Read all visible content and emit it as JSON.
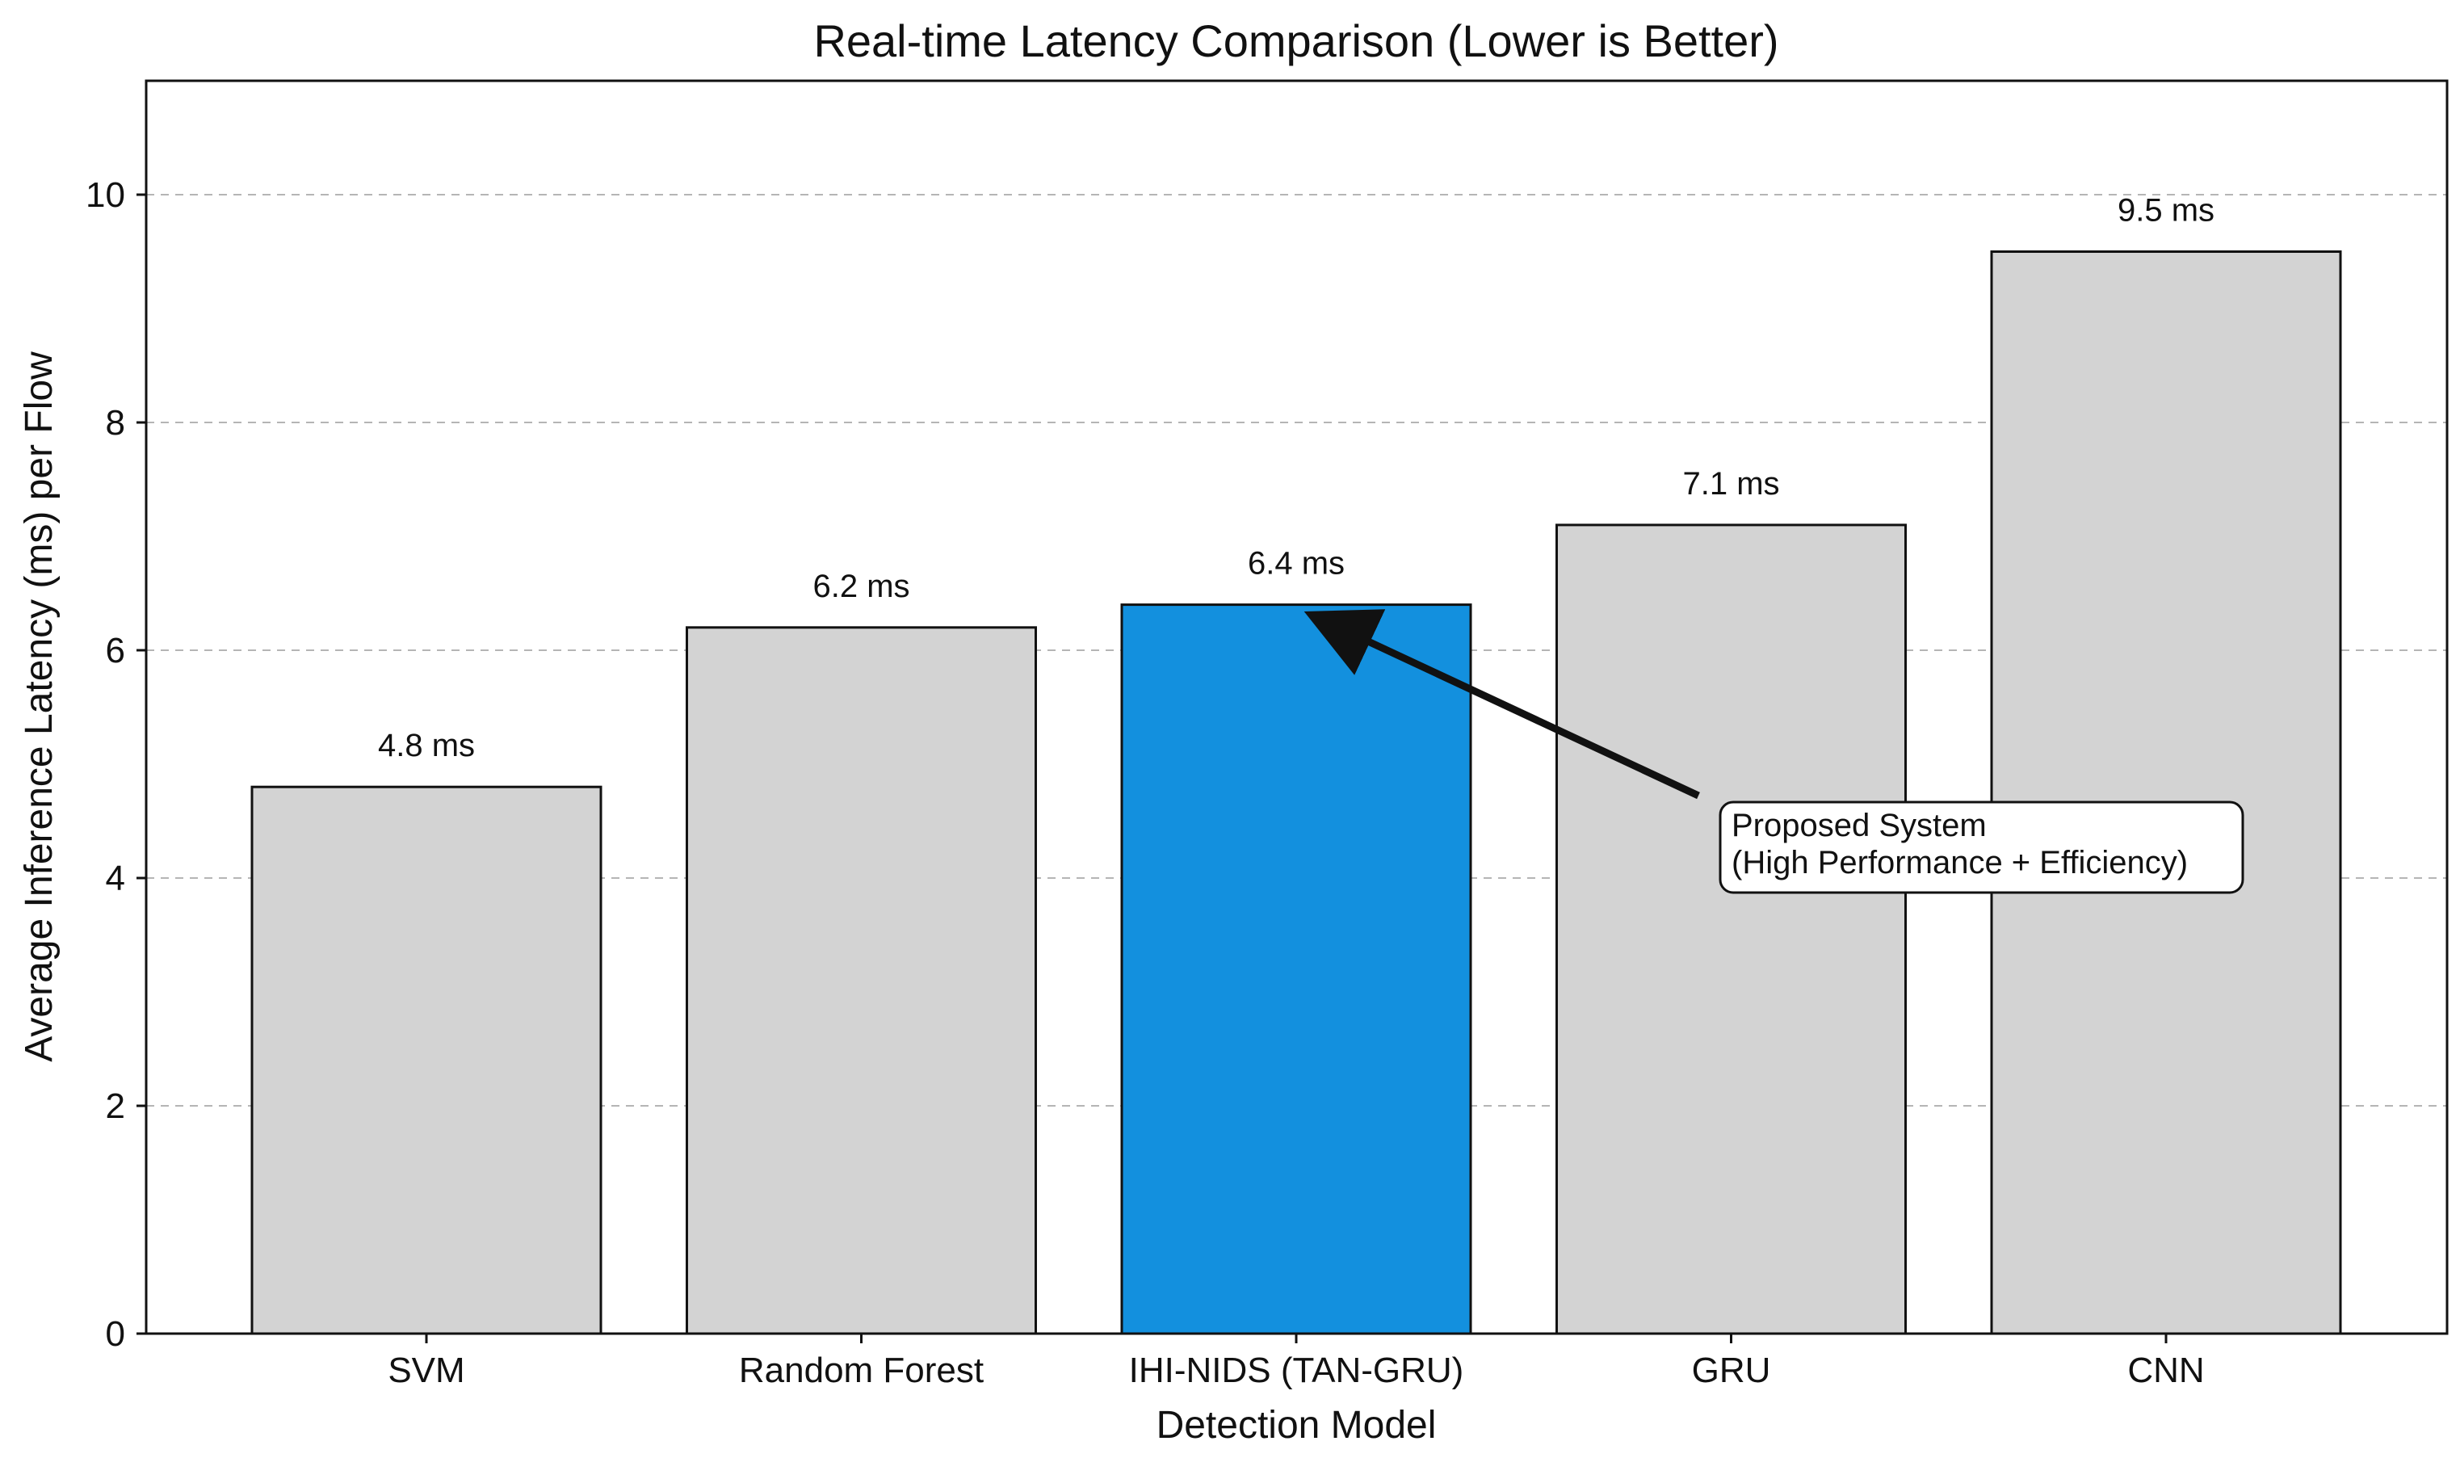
{
  "chart_data": {
    "type": "bar",
    "title": "Real-time Latency Comparison (Lower is Better)",
    "xlabel": "Detection Model",
    "ylabel": "Average Inference Latency (ms) per Flow",
    "categories": [
      "SVM",
      "Random Forest",
      "IHI-NIDS (TAN-GRU)",
      "GRU",
      "CNN"
    ],
    "values": [
      4.8,
      6.2,
      6.4,
      7.1,
      9.5
    ],
    "value_labels": [
      "4.8 ms",
      "6.2 ms",
      "6.4 ms",
      "7.1 ms",
      "9.5 ms"
    ],
    "ylim": [
      0,
      11
    ],
    "yticks": [
      0,
      2,
      4,
      6,
      8,
      10
    ],
    "grid": "horizontal dashed",
    "colors": {
      "default_bar": "#d3d3d3",
      "highlight_bar": "#1390de",
      "bar_edge": "#111111",
      "grid": "#b5b5b5"
    },
    "highlight_category": "IHI-NIDS (TAN-GRU)",
    "annotation": {
      "lines": [
        "Proposed System",
        "(High Performance + Efficiency)"
      ],
      "points_to": "IHI-NIDS (TAN-GRU)"
    }
  }
}
